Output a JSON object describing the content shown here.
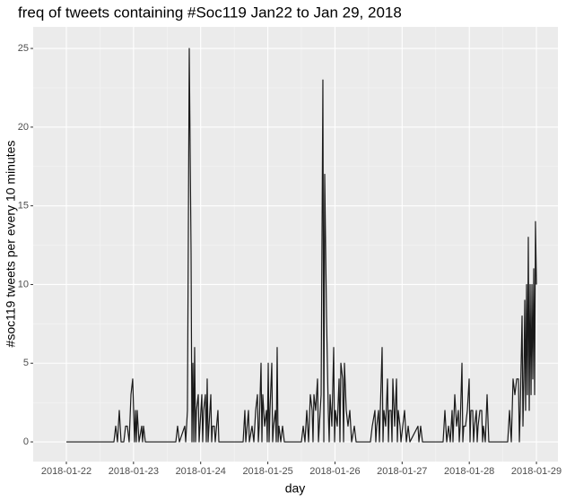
{
  "chart_data": {
    "type": "line",
    "title": "freq of tweets containing #Soc119 Jan22 to Jan 29, 2018",
    "x_label": "day",
    "y_label": "#soc119 tweets per every 10 minutes",
    "grid": true,
    "xlim": [
      -0.494,
      7.32
    ],
    "ylim": [
      -1.25,
      26.37
    ],
    "xticks": [
      {
        "value": 0,
        "label": "2018-01-22"
      },
      {
        "value": 1,
        "label": "2018-01-23"
      },
      {
        "value": 2,
        "label": "2018-01-24"
      },
      {
        "value": 3,
        "label": "2018-01-25"
      },
      {
        "value": 4,
        "label": "2018-01-26"
      },
      {
        "value": 5,
        "label": "2018-01-27"
      },
      {
        "value": 6,
        "label": "2018-01-28"
      },
      {
        "value": 7,
        "label": "2018-01-29"
      }
    ],
    "yticks": [
      0,
      5,
      10,
      15,
      20,
      25
    ],
    "series": [
      {
        "color": "#1a1a1a",
        "x": [
          0,
          0.708,
          0.735,
          0.761,
          0.788,
          0.815,
          0.855,
          0.882,
          0.908,
          0.935,
          0.962,
          0.988,
          1.015,
          1.029,
          1.042,
          1.055,
          1.082,
          1.122,
          1.135,
          1.149,
          1.176,
          1.63,
          1.656,
          1.683,
          1.763,
          1.777,
          1.803,
          1.83,
          1.857,
          1.87,
          1.884,
          1.897,
          1.91,
          1.924,
          1.937,
          1.964,
          1.977,
          1.99,
          2.017,
          2.03,
          2.044,
          2.07,
          2.084,
          2.097,
          2.111,
          2.124,
          2.151,
          2.164,
          2.177,
          2.204,
          2.217,
          2.257,
          2.271,
          2.632,
          2.658,
          2.672,
          2.712,
          2.725,
          2.765,
          2.792,
          2.819,
          2.845,
          2.859,
          2.872,
          2.899,
          2.912,
          2.925,
          2.952,
          2.979,
          2.992,
          3.006,
          3.019,
          3.032,
          3.059,
          3.072,
          3.086,
          3.112,
          3.126,
          3.139,
          3.153,
          3.166,
          3.193,
          3.219,
          3.246,
          3.5,
          3.527,
          3.553,
          3.58,
          3.607,
          3.633,
          3.66,
          3.673,
          3.687,
          3.713,
          3.74,
          3.754,
          3.767,
          3.794,
          3.82,
          3.834,
          3.847,
          3.874,
          3.9,
          3.914,
          3.927,
          3.954,
          3.981,
          3.994,
          4.007,
          4.034,
          4.061,
          4.074,
          4.088,
          4.114,
          4.128,
          4.141,
          4.168,
          4.194,
          4.221,
          4.248,
          4.288,
          4.315,
          4.528,
          4.555,
          4.595,
          4.608,
          4.622,
          4.649,
          4.662,
          4.675,
          4.702,
          4.715,
          4.729,
          4.755,
          4.782,
          4.796,
          4.809,
          4.836,
          4.849,
          4.862,
          4.889,
          4.916,
          4.929,
          4.943,
          4.969,
          4.983,
          5.009,
          5.036,
          5.063,
          5.09,
          5.116,
          5.236,
          5.25,
          5.276,
          5.303,
          5.61,
          5.637,
          5.664,
          5.691,
          5.717,
          5.744,
          5.757,
          5.784,
          5.811,
          5.837,
          5.851,
          5.864,
          5.891,
          5.904,
          5.918,
          5.944,
          5.971,
          5.998,
          6.011,
          6.024,
          6.051,
          6.064,
          6.078,
          6.105,
          6.118,
          6.131,
          6.158,
          6.185,
          6.198,
          6.211,
          6.238,
          6.265,
          6.291,
          6.572,
          6.599,
          6.626,
          6.652,
          6.679,
          6.706,
          6.732,
          6.746,
          6.759,
          6.786,
          6.799,
          6.813,
          6.826,
          6.839,
          6.853,
          6.866,
          6.879,
          6.893,
          6.906,
          6.92,
          6.933,
          6.946,
          6.96,
          6.973,
          6.986,
          7.0
        ],
        "values": [
          0,
          0,
          1,
          0,
          2,
          0,
          0,
          1,
          1,
          0,
          3,
          4,
          0,
          2,
          0,
          2,
          0,
          1,
          0,
          1,
          0,
          0,
          1,
          0,
          1,
          0,
          2,
          25,
          12,
          0,
          5,
          0,
          6,
          0,
          2,
          3,
          0,
          1,
          3,
          0,
          2,
          3,
          0,
          4,
          0,
          1,
          3,
          0,
          1,
          1,
          0,
          2,
          0,
          0,
          2,
          0,
          2,
          0,
          1,
          0,
          2,
          3,
          0,
          1,
          5,
          0,
          3,
          1,
          2,
          0,
          5,
          0,
          2,
          5,
          0,
          1,
          2,
          0,
          6,
          0,
          1,
          0,
          1,
          0,
          0,
          1,
          0,
          2,
          0,
          3,
          2,
          0,
          3,
          2,
          4,
          0,
          1,
          3,
          23,
          0,
          17,
          8,
          2,
          0,
          3,
          1,
          6,
          0,
          2,
          1,
          4,
          0,
          5,
          4,
          0,
          5,
          2,
          1,
          2,
          0,
          1,
          0,
          0,
          1,
          2,
          0,
          1,
          2,
          0,
          2,
          6,
          0,
          2,
          1,
          4,
          0,
          2,
          2,
          0,
          4,
          1,
          4,
          0,
          2,
          1,
          0,
          1,
          2,
          0,
          1,
          0,
          1,
          0,
          1,
          0,
          0,
          2,
          0,
          1,
          0,
          2,
          0,
          3,
          1,
          2,
          0,
          1,
          5,
          0,
          1,
          1,
          2,
          4,
          0,
          2,
          2,
          0,
          1,
          2,
          0,
          1,
          2,
          2,
          0,
          1,
          0,
          3,
          0,
          0,
          2,
          0,
          4,
          3,
          4,
          4,
          0,
          2,
          8,
          1,
          4,
          9,
          2,
          10,
          3,
          13,
          2,
          10,
          3,
          10,
          4,
          11,
          3,
          14,
          10
        ]
      }
    ]
  }
}
